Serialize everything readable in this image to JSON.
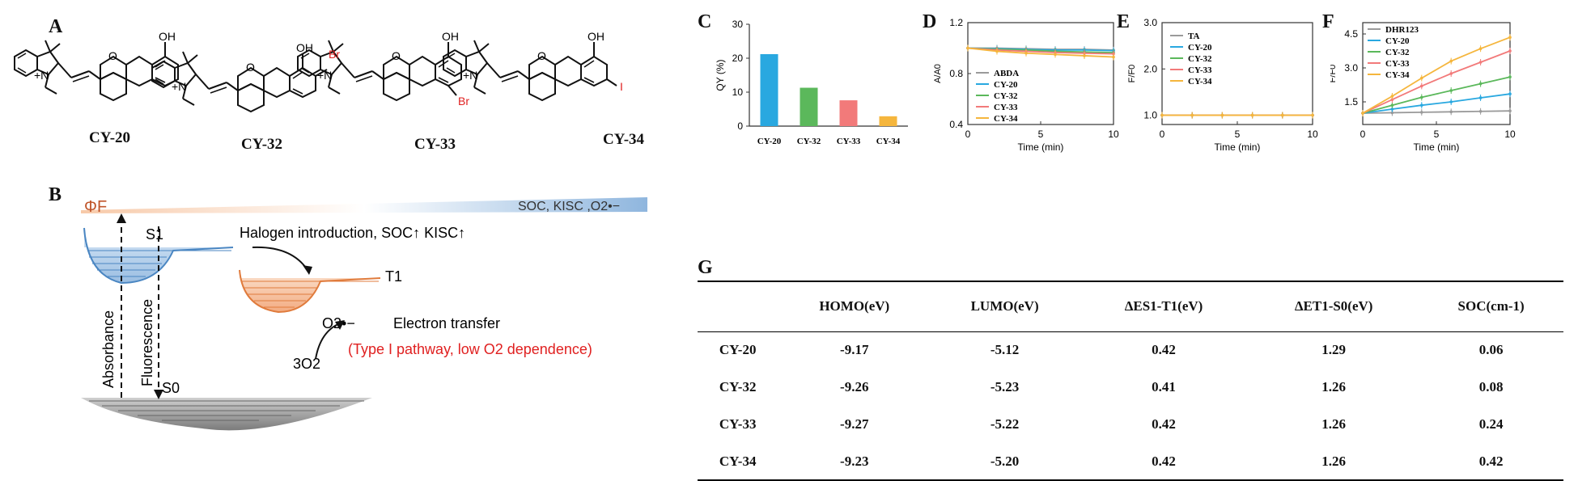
{
  "panel_labels": {
    "a": "A",
    "b": "B",
    "c": "C",
    "d": "D",
    "e": "E",
    "f": "F",
    "g": "G"
  },
  "molecules": [
    {
      "name": "CY-20",
      "substituent": ""
    },
    {
      "name": "CY-32",
      "substituent": "Br"
    },
    {
      "name": "CY-33",
      "substituent": "Br"
    },
    {
      "name": "CY-34",
      "substituent": "I"
    }
  ],
  "atoms": {
    "oh": "OH",
    "n_plus": "+N",
    "o": "O"
  },
  "diagram_b": {
    "phi_f": "ΦF",
    "soc_label": "SOC, KISC ,O2•−",
    "s1": "S1",
    "t1": "T1",
    "s0": "S0",
    "halogen_text": "Halogen introduction, SOC↑  KISC↑",
    "o2_radical": "O2•−",
    "electron_transfer": "Electron transfer",
    "triplet_o2": "3O2",
    "type1": "(Type I pathway, low O2 dependence)",
    "absorbance": "Absorbance",
    "fluorescence": "Fluorescence"
  },
  "colors": {
    "cy20": "#29a8e0",
    "cy32": "#5bb85b",
    "cy33": "#f27a7a",
    "cy34": "#f5b63d",
    "ref": "#9a9a9a",
    "red_text": "#e02020"
  },
  "chart_data": [
    {
      "panel": "C",
      "type": "bar",
      "ylabel": "QY (%)",
      "xlabel": "",
      "categories": [
        "CY-20",
        "CY-32",
        "CY-33",
        "CY-34"
      ],
      "values": [
        21.2,
        11.3,
        7.6,
        2.9
      ],
      "ylim": [
        0,
        30
      ],
      "yticks": [
        "0",
        "10",
        "20",
        "30"
      ]
    },
    {
      "panel": "D",
      "type": "line",
      "xlabel": "Time (min)",
      "ylabel": "A/A0",
      "xlim": [
        0,
        10
      ],
      "ylim": [
        0.4,
        1.2
      ],
      "xticks": [
        "0",
        "5",
        "10"
      ],
      "yticks": [
        "0.4",
        "0.8",
        "1.2"
      ],
      "x": [
        0,
        2,
        4,
        6,
        8,
        10
      ],
      "series": [
        {
          "name": "ABDA",
          "values": [
            1.0,
            1.0,
            0.995,
            0.99,
            0.99,
            0.985
          ]
        },
        {
          "name": "CY-20",
          "values": [
            1.0,
            0.995,
            0.99,
            0.985,
            0.985,
            0.98
          ]
        },
        {
          "name": "CY-32",
          "values": [
            1.0,
            0.99,
            0.985,
            0.975,
            0.97,
            0.965
          ]
        },
        {
          "name": "CY-33",
          "values": [
            1.0,
            0.985,
            0.975,
            0.965,
            0.96,
            0.955
          ]
        },
        {
          "name": "CY-34",
          "values": [
            1.0,
            0.975,
            0.96,
            0.95,
            0.94,
            0.93
          ]
        }
      ]
    },
    {
      "panel": "E",
      "type": "line",
      "xlabel": "Time (min)",
      "ylabel": "F/F0",
      "xlim": [
        0,
        10
      ],
      "ylim": [
        0.8,
        3.0
      ],
      "xticks": [
        "0",
        "5",
        "10"
      ],
      "yticks": [
        "1.0",
        "2.0",
        "3.0"
      ],
      "x": [
        0,
        2,
        4,
        6,
        8,
        10
      ],
      "series": [
        {
          "name": "TA",
          "values": [
            1,
            1,
            1,
            1,
            1,
            1
          ]
        },
        {
          "name": "CY-20",
          "values": [
            1,
            1,
            1,
            1,
            1,
            1
          ]
        },
        {
          "name": "CY-32",
          "values": [
            1,
            1,
            1,
            1,
            1,
            1
          ]
        },
        {
          "name": "CY-33",
          "values": [
            1,
            1,
            1,
            1,
            1,
            1
          ]
        },
        {
          "name": "CY-34",
          "values": [
            1,
            1,
            1,
            1,
            1,
            1
          ]
        }
      ]
    },
    {
      "panel": "F",
      "type": "line",
      "xlabel": "Time (min)",
      "ylabel": "F/F0",
      "xlim": [
        0,
        10
      ],
      "ylim": [
        0.5,
        5.0
      ],
      "xticks": [
        "0",
        "5",
        "10"
      ],
      "yticks": [
        "1.5",
        "3.0",
        "4.5"
      ],
      "x": [
        0,
        2,
        4,
        6,
        8,
        10
      ],
      "series": [
        {
          "name": "DHR123",
          "values": [
            1.0,
            1.02,
            1.04,
            1.06,
            1.08,
            1.1
          ]
        },
        {
          "name": "CY-20",
          "values": [
            1.0,
            1.18,
            1.35,
            1.5,
            1.68,
            1.85
          ]
        },
        {
          "name": "CY-32",
          "values": [
            1.0,
            1.35,
            1.7,
            2.0,
            2.3,
            2.6
          ]
        },
        {
          "name": "CY-33",
          "values": [
            1.0,
            1.6,
            2.2,
            2.75,
            3.25,
            3.75
          ]
        },
        {
          "name": "CY-34",
          "values": [
            1.0,
            1.75,
            2.55,
            3.3,
            3.85,
            4.35
          ]
        }
      ]
    },
    {
      "panel": "G",
      "type": "table",
      "columns": [
        "",
        "HOMO(eV)",
        "LUMO(eV)",
        "ΔES1-T1(eV)",
        "ΔET1-S0(eV)",
        "SOC(cm-1)"
      ],
      "rows": [
        [
          "CY-20",
          "-9.17",
          "-5.12",
          "0.42",
          "1.29",
          "0.06"
        ],
        [
          "CY-32",
          "-9.26",
          "-5.23",
          "0.41",
          "1.26",
          "0.08"
        ],
        [
          "CY-33",
          "-9.27",
          "-5.22",
          "0.42",
          "1.26",
          "0.24"
        ],
        [
          "CY-34",
          "-9.23",
          "-5.20",
          "0.42",
          "1.26",
          "0.42"
        ]
      ]
    }
  ]
}
